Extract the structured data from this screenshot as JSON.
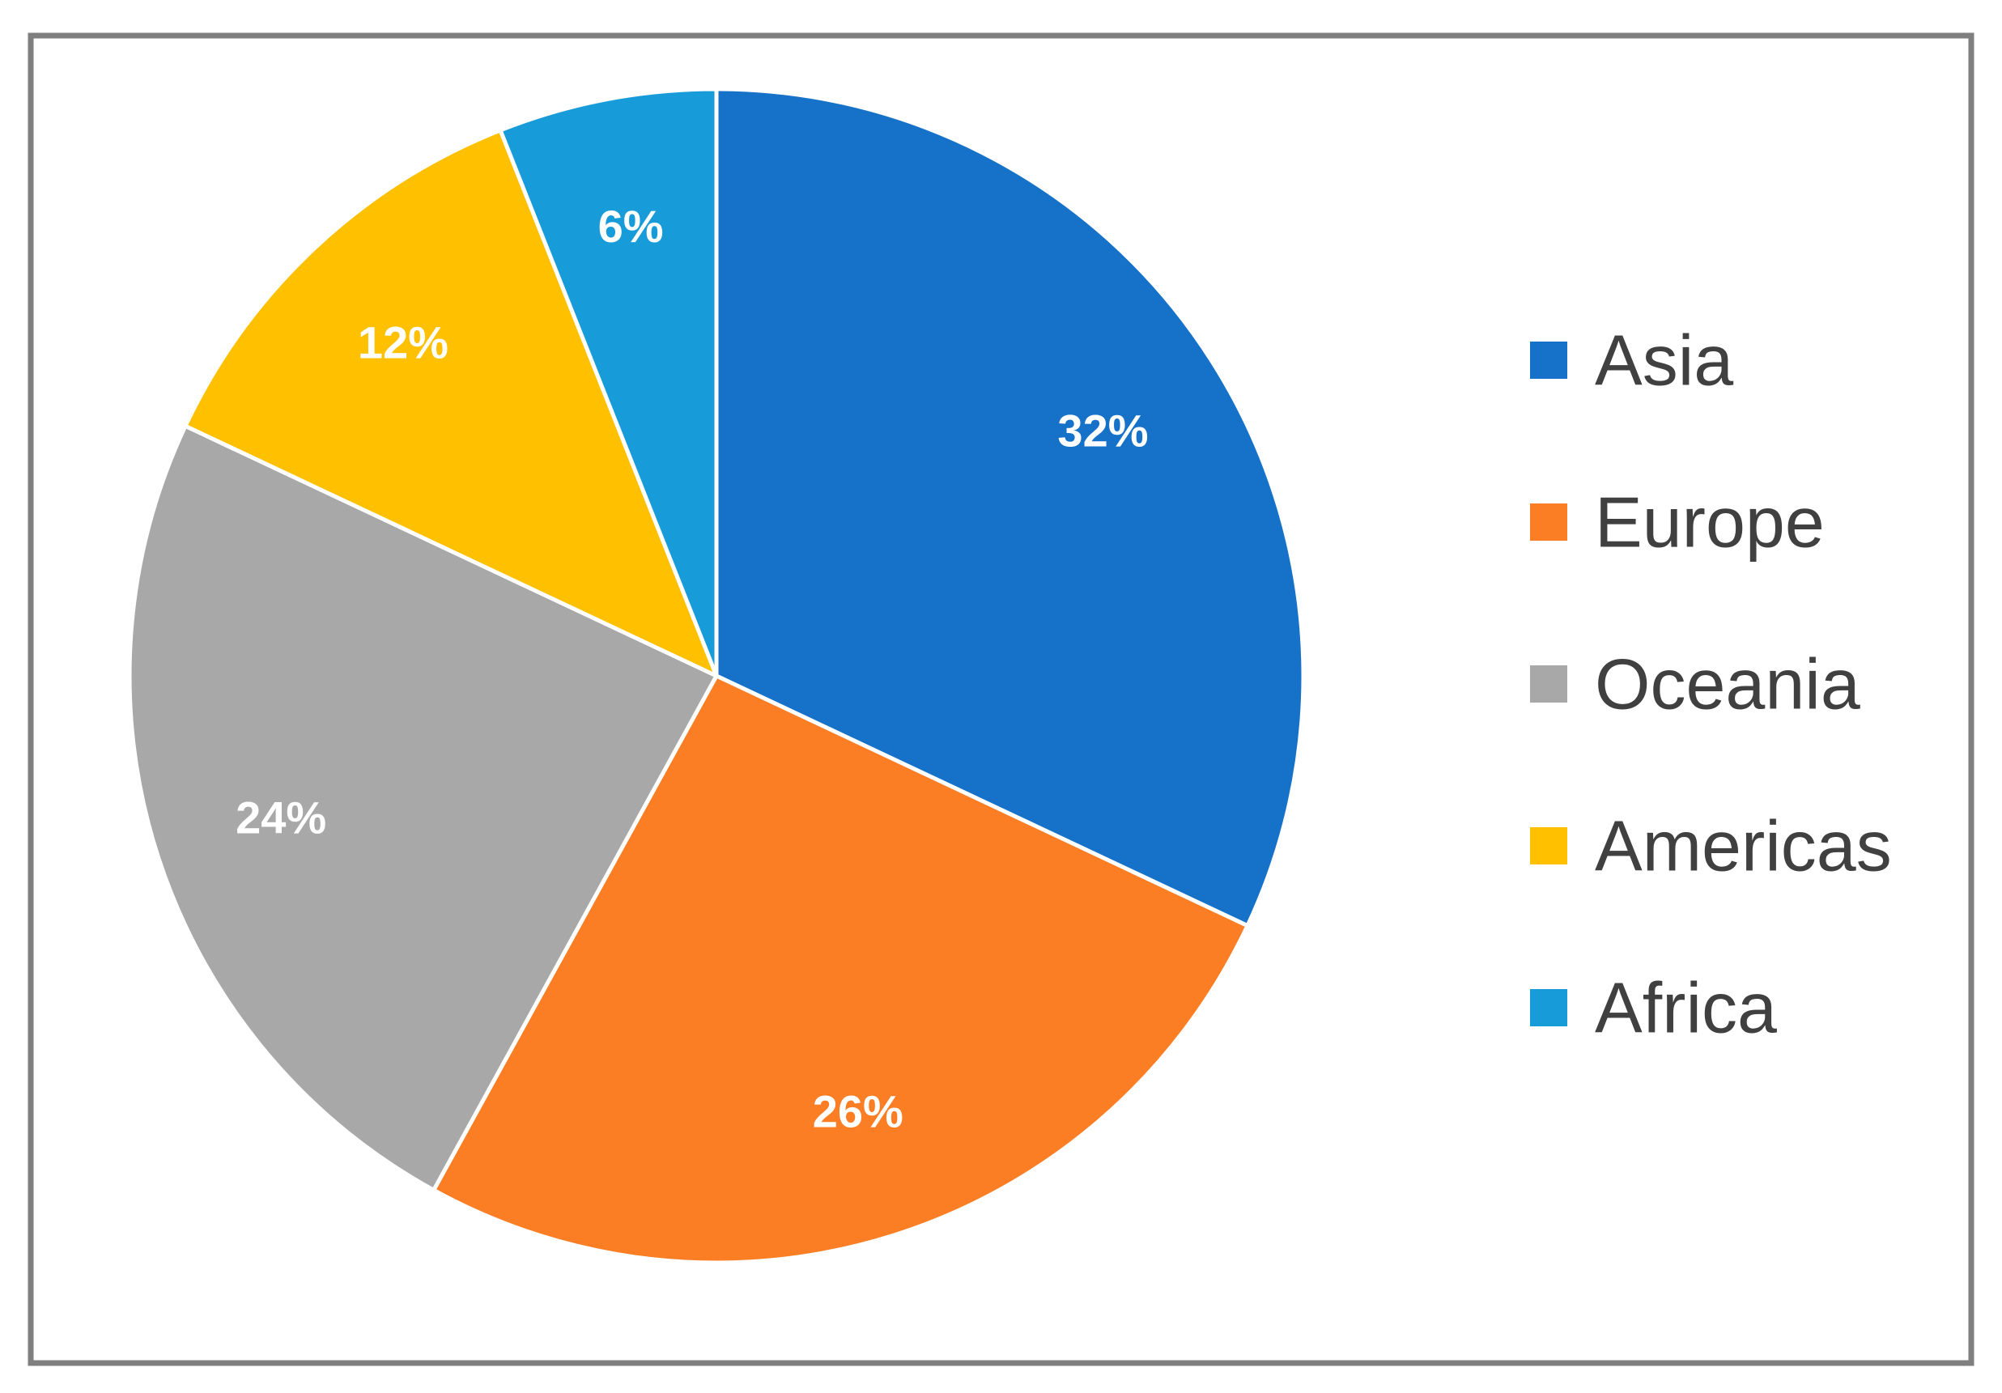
{
  "chart_data": {
    "type": "pie",
    "start_angle_deg": 0,
    "direction": "clockwise",
    "legend_position": "right",
    "slices": [
      {
        "label": "Asia",
        "value": 32,
        "display": "32%",
        "color": "#1672C8"
      },
      {
        "label": "Europe",
        "value": 26,
        "display": "26%",
        "color": "#FC7E24"
      },
      {
        "label": "Oceania",
        "value": 24,
        "display": "24%",
        "color": "#A8A8A8"
      },
      {
        "label": "Americas",
        "value": 12,
        "display": "12%",
        "color": "#FFC000"
      },
      {
        "label": "Africa",
        "value": 6,
        "display": "6%",
        "color": "#179CD9"
      }
    ]
  },
  "colors": {
    "border": "#7F7F7F",
    "slice_separator": "#FFFFFF"
  }
}
